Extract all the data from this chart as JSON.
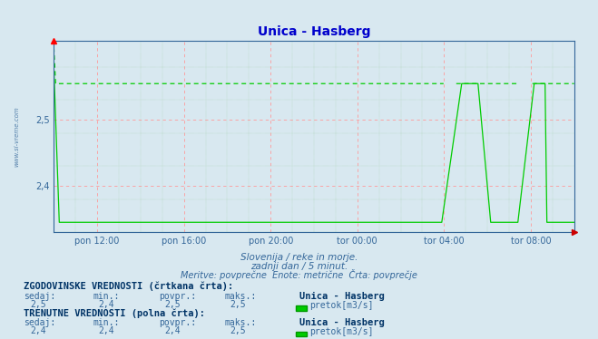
{
  "title": "Unica - Hasberg",
  "bg_color": "#d8e8f0",
  "plot_bg_color": "#d8e8f0",
  "x_tick_labels": [
    "pon 12:00",
    "pon 16:00",
    "pon 20:00",
    "tor 00:00",
    "tor 04:00",
    "tor 08:00"
  ],
  "x_tick_positions": [
    0.0833,
    0.25,
    0.4167,
    0.5833,
    0.75,
    0.9167
  ],
  "y_ticks": [
    2.4,
    2.5
  ],
  "ylim": [
    2.33,
    2.62
  ],
  "xlim": [
    0,
    1
  ],
  "title_color": "#0000cc",
  "tick_color": "#336699",
  "subtitle_lines": [
    "Slovenija / reke in morje.",
    "zadnji dan / 5 minut.",
    "Meritve: povprečne  Enote: metrične  Črta: povprečje"
  ],
  "hist_label": "ZGODOVINSKE VREDNOSTI (črtkana črta):",
  "curr_label": "TRENUTNE VREDNOSTI (polna črta):",
  "table_headers": [
    "sedaj:",
    "min.:",
    "povpr.:",
    "maks.:"
  ],
  "hist_values": [
    "2,5",
    "2,4",
    "2,5",
    "2,5"
  ],
  "curr_values": [
    "2,4",
    "2,4",
    "2,4",
    "2,5"
  ],
  "station_name": "Unica - Hasberg",
  "unit_label": "pretok[m3/s]",
  "dashed_color": "#00cc00",
  "solid_color": "#00cc00",
  "watermark_color": "#336699",
  "side_label": "www.si-vreme.com"
}
